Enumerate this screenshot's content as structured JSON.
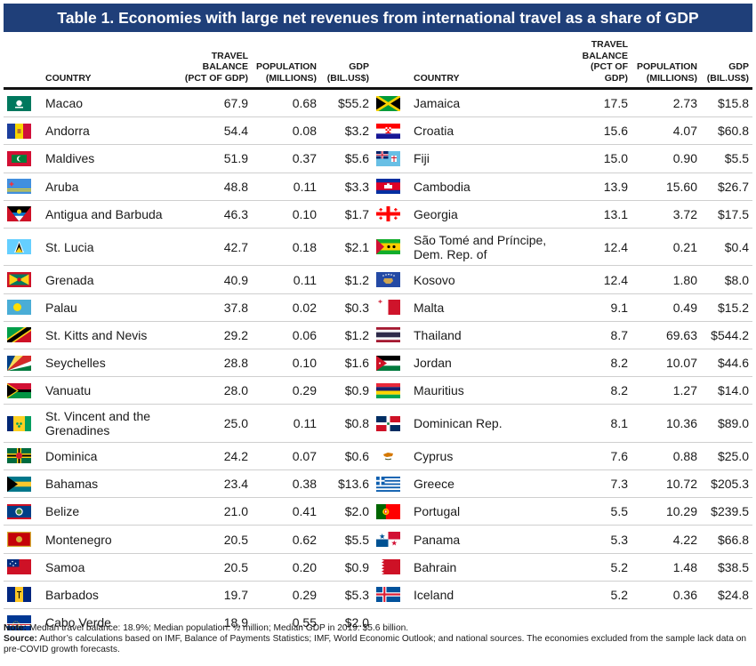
{
  "title": "Table 1. Economies with large net revenues from international travel as a share of GDP",
  "headers": {
    "country": "COUNTRY",
    "travel": "TRAVEL\nBALANCE\n(PCT OF GDP)",
    "travel_right": "TRAVEL\nBALANCE\n(PCT OF\nGDP)",
    "population": "POPULATION\n(MILLIONS)",
    "gdp": "GDP\n(BIL.US$)"
  },
  "left_rows": [
    {
      "country": "Macao",
      "travel": "67.9",
      "pop": "0.68",
      "gdp": "$55.2",
      "flag": "macao-flag-icon"
    },
    {
      "country": "Andorra",
      "travel": "54.4",
      "pop": "0.08",
      "gdp": "$3.2",
      "flag": "andorra-flag-icon"
    },
    {
      "country": "Maldives",
      "travel": "51.9",
      "pop": "0.37",
      "gdp": "$5.6",
      "flag": "maldives-flag-icon"
    },
    {
      "country": "Aruba",
      "travel": "48.8",
      "pop": "0.11",
      "gdp": "$3.3",
      "flag": "aruba-flag-icon"
    },
    {
      "country": "Antigua and Barbuda",
      "travel": "46.3",
      "pop": "0.10",
      "gdp": "$1.7",
      "flag": "antigua-and-barbuda-flag-icon"
    },
    {
      "country": "St. Lucia",
      "travel": "42.7",
      "pop": "0.18",
      "gdp": "$2.1",
      "flag": "st-lucia-flag-icon"
    },
    {
      "country": "Grenada",
      "travel": "40.9",
      "pop": "0.11",
      "gdp": "$1.2",
      "flag": "grenada-flag-icon"
    },
    {
      "country": "Palau",
      "travel": "37.8",
      "pop": "0.02",
      "gdp": "$0.3",
      "flag": "palau-flag-icon"
    },
    {
      "country": "St. Kitts and Nevis",
      "travel": "29.2",
      "pop": "0.06",
      "gdp": "$1.2",
      "flag": "st-kitts-and-nevis-flag-icon"
    },
    {
      "country": "Seychelles",
      "travel": "28.8",
      "pop": "0.10",
      "gdp": "$1.6",
      "flag": "seychelles-flag-icon"
    },
    {
      "country": "Vanuatu",
      "travel": "28.0",
      "pop": "0.29",
      "gdp": "$0.9",
      "flag": "vanuatu-flag-icon"
    },
    {
      "country": "St. Vincent and the\nGrenadines",
      "travel": "25.0",
      "pop": "0.11",
      "gdp": "$0.8",
      "flag": "st-vincent-flag-icon"
    },
    {
      "country": "Dominica",
      "travel": "24.2",
      "pop": "0.07",
      "gdp": "$0.6",
      "flag": "dominica-flag-icon"
    },
    {
      "country": "Bahamas",
      "travel": "23.4",
      "pop": "0.38",
      "gdp": "$13.6",
      "flag": "bahamas-flag-icon"
    },
    {
      "country": "Belize",
      "travel": "21.0",
      "pop": "0.41",
      "gdp": "$2.0",
      "flag": "belize-flag-icon"
    },
    {
      "country": "Montenegro",
      "travel": "20.5",
      "pop": "0.62",
      "gdp": "$5.5",
      "flag": "montenegro-flag-icon"
    },
    {
      "country": "Samoa",
      "travel": "20.5",
      "pop": "0.20",
      "gdp": "$0.9",
      "flag": "samoa-flag-icon"
    },
    {
      "country": "Barbados",
      "travel": "19.7",
      "pop": "0.29",
      "gdp": "$5.3",
      "flag": "barbados-flag-icon"
    },
    {
      "country": "Cabo Verde",
      "travel": "18.9",
      "pop": "0.55",
      "gdp": "$2.0",
      "flag": "cabo-verde-flag-icon"
    }
  ],
  "right_rows": [
    {
      "country": "Jamaica",
      "travel": "17.5",
      "pop": "2.73",
      "gdp": "$15.8",
      "flag": "jamaica-flag-icon"
    },
    {
      "country": "Croatia",
      "travel": "15.6",
      "pop": "4.07",
      "gdp": "$60.8",
      "flag": "croatia-flag-icon"
    },
    {
      "country": "Fiji",
      "travel": "15.0",
      "pop": "0.90",
      "gdp": "$5.5",
      "flag": "fiji-flag-icon"
    },
    {
      "country": "Cambodia",
      "travel": "13.9",
      "pop": "15.60",
      "gdp": "$26.7",
      "flag": "cambodia-flag-icon"
    },
    {
      "country": "Georgia",
      "travel": "13.1",
      "pop": "3.72",
      "gdp": "$17.5",
      "flag": "georgia-flag-icon"
    },
    {
      "country": "São Tomé and Príncipe,\nDem. Rep. of",
      "travel": "12.4",
      "pop": "0.21",
      "gdp": "$0.4",
      "flag": "sao-tome-flag-icon"
    },
    {
      "country": "Kosovo",
      "travel": "12.4",
      "pop": "1.80",
      "gdp": "$8.0",
      "flag": "kosovo-flag-icon"
    },
    {
      "country": "Malta",
      "travel": "9.1",
      "pop": "0.49",
      "gdp": "$15.2",
      "flag": "malta-flag-icon"
    },
    {
      "country": "Thailand",
      "travel": "8.7",
      "pop": "69.63",
      "gdp": "$544.2",
      "flag": "thailand-flag-icon"
    },
    {
      "country": "Jordan",
      "travel": "8.2",
      "pop": "10.07",
      "gdp": "$44.6",
      "flag": "jordan-flag-icon"
    },
    {
      "country": "Mauritius",
      "travel": "8.2",
      "pop": "1.27",
      "gdp": "$14.0",
      "flag": "mauritius-flag-icon"
    },
    {
      "country": "Dominican Rep.",
      "travel": "8.1",
      "pop": "10.36",
      "gdp": "$89.0",
      "flag": "dominican-republic-flag-icon"
    },
    {
      "country": "Cyprus",
      "travel": "7.6",
      "pop": "0.88",
      "gdp": "$25.0",
      "flag": "cyprus-flag-icon"
    },
    {
      "country": "Greece",
      "travel": "7.3",
      "pop": "10.72",
      "gdp": "$205.3",
      "flag": "greece-flag-icon"
    },
    {
      "country": "Portugal",
      "travel": "5.5",
      "pop": "10.29",
      "gdp": "$239.5",
      "flag": "portugal-flag-icon"
    },
    {
      "country": "Panama",
      "travel": "5.3",
      "pop": "4.22",
      "gdp": "$66.8",
      "flag": "panama-flag-icon"
    },
    {
      "country": "Bahrain",
      "travel": "5.2",
      "pop": "1.48",
      "gdp": "$38.5",
      "flag": "bahrain-flag-icon"
    },
    {
      "country": "Iceland",
      "travel": "5.2",
      "pop": "0.36",
      "gdp": "$24.8",
      "flag": "iceland-flag-icon"
    }
  ],
  "notes": {
    "note_label": "Note:",
    "note_text": " Median travel balance: 18.9%; Median population: ½ million; Median GDP in 2019: $5.6 billion.",
    "source_label": "Source:",
    "source_text": " Author’s calculations based on IMF, Balance of Payments Statistics; IMF, World Economic Outlook; and national sources. The economies excluded from the sample lack data on pre-COVID growth forecasts."
  },
  "colors": {
    "title_background": "#1f3f79",
    "title_text": "#ffffff",
    "rule": "#111111",
    "row_border": "#cfcfcf"
  }
}
